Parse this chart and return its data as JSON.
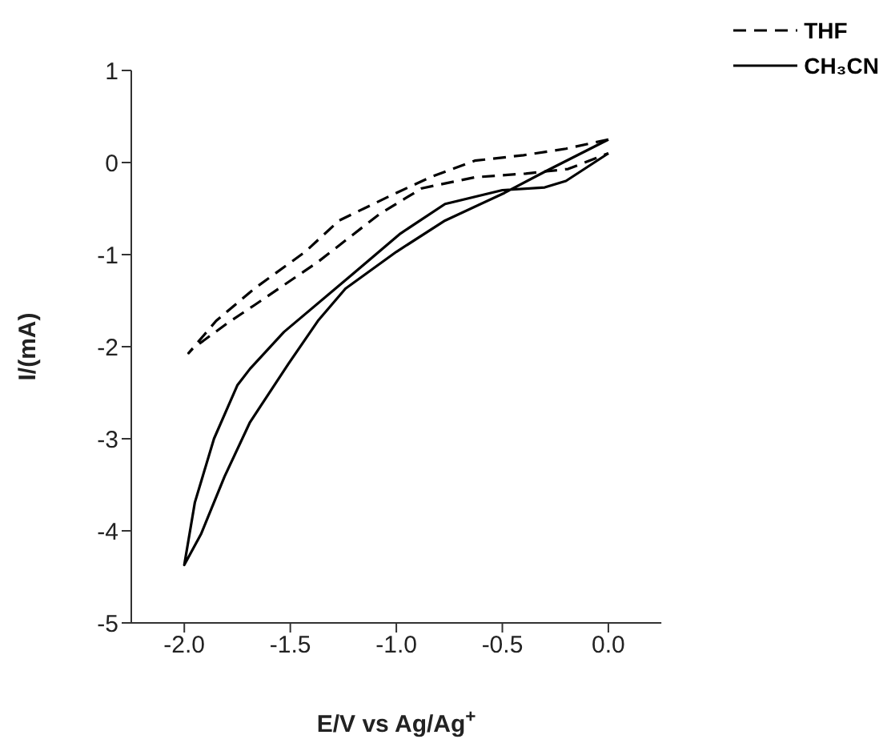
{
  "chart_data": {
    "type": "line",
    "xlabel": "E/V vs Ag/Ag$^{+}$",
    "ylabel": "I/(mA)",
    "xlim": [
      -2.25,
      0.25
    ],
    "xticks": [
      {
        "value": -2,
        "label": "-2.0"
      },
      -1.5,
      {
        "value": -1,
        "label": "-1.0"
      },
      -0.5,
      {
        "value": 0,
        "label": "0.0"
      }
    ],
    "ylim": [
      -5,
      1
    ],
    "yticks": [
      -5,
      -4,
      -3,
      -2,
      -1,
      0,
      1
    ],
    "grid": false,
    "legend": "top right",
    "marker": "none",
    "series": [
      {
        "name": "THF",
        "color": "#000000",
        "line_style": "dashed",
        "x": [
          0,
          -0.2,
          -0.4,
          -0.63,
          -0.84,
          -1.0,
          -1.27,
          -1.43,
          -1.67,
          -1.85,
          -1.98,
          -1.96,
          -1.8,
          -1.67,
          -1.37,
          -1.08,
          -0.88,
          -0.63,
          -0.39,
          -0.19,
          0
        ],
        "values": [
          0.25,
          0.15,
          0.08,
          0.02,
          -0.16,
          -0.33,
          -0.63,
          -0.97,
          -1.37,
          -1.72,
          -2.07,
          -2.02,
          -1.75,
          -1.55,
          -1.08,
          -0.56,
          -0.28,
          -0.16,
          -0.12,
          -0.07,
          0.1
        ]
      },
      {
        "name": "CH₃CN",
        "color": "#000000",
        "line_style": "solid",
        "x": [
          0,
          -0.1,
          -0.2,
          -0.3,
          -0.5,
          -0.77,
          -0.98,
          -1.2,
          -1.53,
          -1.69,
          -1.75,
          -1.86,
          -1.95,
          -2.0,
          -1.92,
          -1.81,
          -1.69,
          -1.51,
          -1.37,
          -1.24,
          -1.0,
          -0.77,
          -0.49,
          -0.3,
          0
        ],
        "values": [
          0.1,
          -0.05,
          -0.2,
          -0.27,
          -0.3,
          -0.45,
          -0.77,
          -1.2,
          -1.84,
          -2.24,
          -2.42,
          -3.0,
          -3.69,
          -4.37,
          -4.03,
          -3.41,
          -2.82,
          -2.19,
          -1.72,
          -1.37,
          -0.97,
          -0.63,
          -0.33,
          -0.1,
          0.25
        ]
      }
    ]
  }
}
